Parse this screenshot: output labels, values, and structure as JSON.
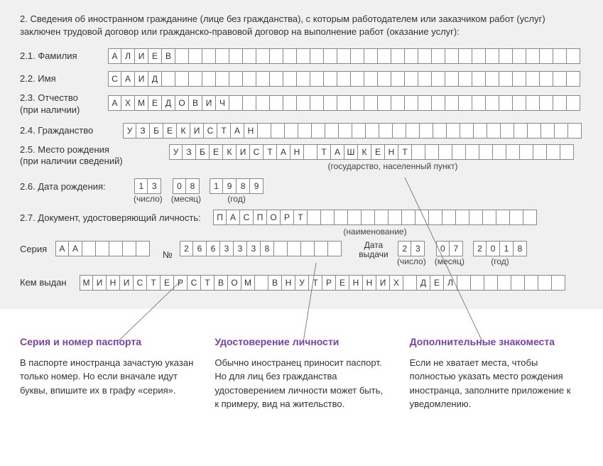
{
  "intro": "2. Сведения об иностранном гражданине (лице без гражданства), с которым работодателем или заказчиком работ (услуг) заключен трудовой договор или гражданско-правовой договор на выполнение работ (оказание услуг):",
  "fields": {
    "surname": {
      "label": "2.1. Фамилия",
      "value": "АЛИЕВ",
      "width": 35
    },
    "name": {
      "label": "2.2. Имя",
      "value": "САИД",
      "width": 35
    },
    "patronym": {
      "label": "2.3. Отчество\n(при наличии)",
      "value": "АХМЕДОВИЧ",
      "width": 35
    },
    "citizen": {
      "label": "2.4. Гражданство",
      "value": "УЗБЕКИСТАН",
      "width": 34
    },
    "birthplace": {
      "label": "2.5. Место рождения\n(при наличии сведений)",
      "value": "УЗБЕКИСТАН ТАШКЕНТ",
      "width": 30,
      "sublabel": "(государство, населенный пункт)"
    },
    "birthdate": {
      "label": "2.6. Дата рождения:",
      "day": "13",
      "month": "08",
      "year": "1989",
      "sub_day": "(число)",
      "sub_month": "(месяц)",
      "sub_year": "(год)"
    },
    "document": {
      "label": "2.7. Документ, удостоверяющий личность:",
      "value": "ПАСПОРТ",
      "width": 24,
      "sublabel": "(наименование)"
    },
    "series": {
      "label": "Серия",
      "value": "АА",
      "width": 7
    },
    "number_label": "№",
    "number": {
      "value": "2663338",
      "width": 12
    },
    "issue_date": {
      "label": "Дата\nвыдачи",
      "day": "23",
      "month": "07",
      "year": "2018",
      "sub_day": "(число)",
      "sub_month": "(месяц)",
      "sub_year": "(год)"
    },
    "issued_by": {
      "label": "Кем выдан",
      "value": "МИНИСТЕРСТВОМ ВНУТРЕННИХ ДЕЛ",
      "width": 36
    }
  },
  "annotations": {
    "col1": {
      "title": "Серия и номер паспорта",
      "text": "В паспорте иностранца зачастую указан только номер. Но если вначале идут буквы, впишите их в графу «серия»."
    },
    "col2": {
      "title": "Удостоверение личности",
      "text": "Обычно иностранец приносит паспорт. Но для лиц без гражданства удостоверением личности может быть, к примеру, вид на жительство."
    },
    "col3": {
      "title": "Дополнительные знакоместа",
      "text": "Если не хватает места, чтобы полностью указать место рождения иностранца, заполните приложение к уведомлению."
    }
  },
  "styling": {
    "cell_border": "#888888",
    "cell_bg": "#ffffff",
    "form_bg": "#f0f0f0",
    "accent": "#7b3fa7",
    "line_color": "#666666"
  }
}
